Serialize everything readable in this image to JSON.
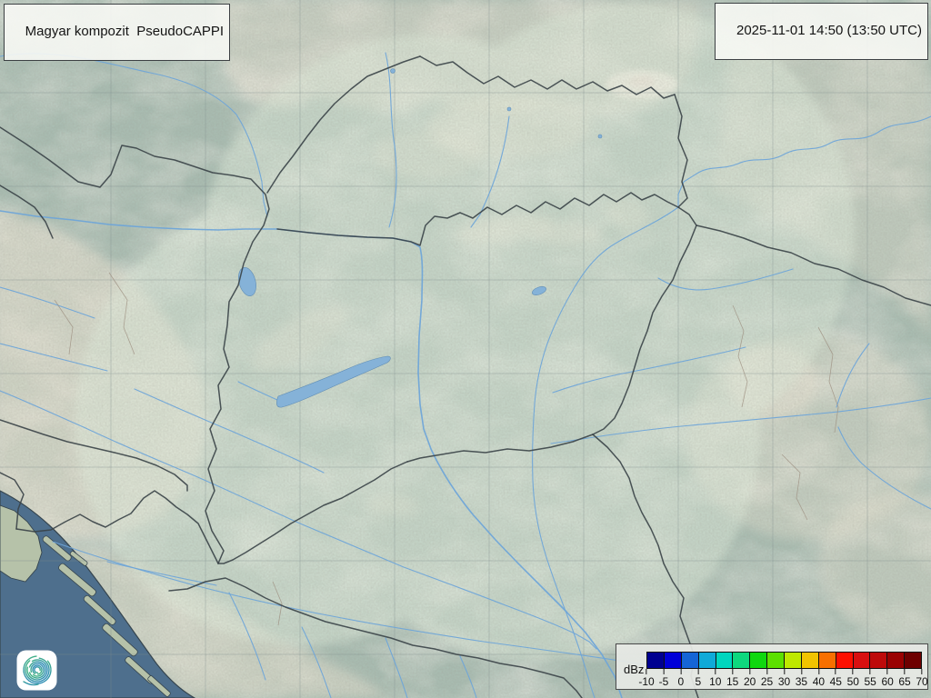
{
  "header": {
    "product_label": "Magyar kompozit  PseudoCAPPI",
    "timestamp": "2025-11-01 14:50 (13:50 UTC)"
  },
  "legend": {
    "unit_label": "dBz",
    "tick_values": [
      "-10",
      "-5",
      "0",
      "5",
      "10",
      "15",
      "20",
      "25",
      "30",
      "35",
      "40",
      "45",
      "50",
      "55",
      "60",
      "65",
      "70"
    ],
    "colors": [
      "#000090",
      "#0000d8",
      "#1565d6",
      "#10aad8",
      "#00d6be",
      "#0ed87e",
      "#0fd80f",
      "#5ce000",
      "#bee800",
      "#f2c400",
      "#f87000",
      "#fc1000",
      "#d81010",
      "#be0a0a",
      "#9a0202",
      "#6e0000"
    ]
  },
  "logo": {
    "icon": "spiral-swirl-logo-icon",
    "color_start": "#2e86c1",
    "color_end": "#45b97c"
  },
  "map": {
    "colors": {
      "land_base": "#a9bdb2",
      "coverage_tint": "#e0ecdc",
      "mountain": "#e9e3d2",
      "sea": "#4e6f8d",
      "island_land": "#b6c2a9",
      "lake": "#85b2d8",
      "river": "#6fa5d8",
      "border": "#3a4347",
      "regional_border": "#9b8c7e",
      "graticule": "#7e8c8c"
    }
  }
}
